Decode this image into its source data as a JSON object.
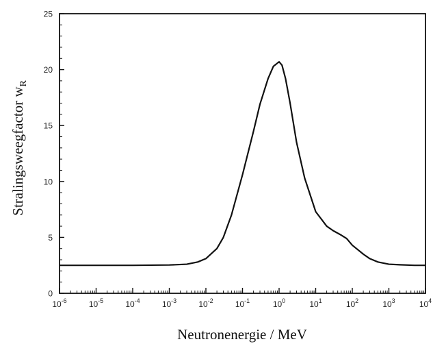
{
  "chart_data": {
    "type": "line",
    "xscale": "log",
    "xlim": [
      1e-06,
      10000
    ],
    "ylim": [
      0,
      25
    ],
    "xlabel": "Neutronenergie / MeV",
    "ylabel": {
      "main": "Stralingsweegfactor w",
      "sub": "R"
    },
    "xticks": [
      {
        "base": "10",
        "exp": "-6",
        "value": 1e-06
      },
      {
        "base": "10",
        "exp": "-5",
        "value": 1e-05
      },
      {
        "base": "10",
        "exp": "-4",
        "value": 0.0001
      },
      {
        "base": "10",
        "exp": "-3",
        "value": 0.001
      },
      {
        "base": "10",
        "exp": "-2",
        "value": 0.01
      },
      {
        "base": "10",
        "exp": "-1",
        "value": 0.1
      },
      {
        "base": "10",
        "exp": "0",
        "value": 1
      },
      {
        "base": "10",
        "exp": "1",
        "value": 10
      },
      {
        "base": "10",
        "exp": "2",
        "value": 100
      },
      {
        "base": "10",
        "exp": "3",
        "value": 1000
      },
      {
        "base": "10",
        "exp": "4",
        "value": 10000
      }
    ],
    "yticks": [
      {
        "label": "0",
        "value": 0
      },
      {
        "label": "5",
        "value": 5
      },
      {
        "label": "10",
        "value": 10
      },
      {
        "label": "15",
        "value": 15
      },
      {
        "label": "20",
        "value": 20
      },
      {
        "label": "25",
        "value": 25
      }
    ],
    "grid": false,
    "series": [
      {
        "x": [
          1e-06,
          1e-05,
          0.0001,
          0.001,
          0.003,
          0.006,
          0.01,
          0.02,
          0.03,
          0.05,
          0.1,
          0.2,
          0.3,
          0.5,
          0.7,
          1.0,
          1.2,
          1.5,
          2,
          3,
          5,
          10,
          20,
          30,
          50,
          70,
          100,
          200,
          300,
          500,
          1000,
          2000,
          5000,
          10000
        ],
        "y": [
          2.5,
          2.5,
          2.5,
          2.53,
          2.6,
          2.8,
          3.1,
          4.0,
          5.0,
          7.0,
          10.6,
          14.5,
          16.9,
          19.2,
          20.3,
          20.7,
          20.4,
          19.2,
          17.0,
          13.5,
          10.3,
          7.3,
          6.0,
          5.6,
          5.2,
          4.9,
          4.3,
          3.5,
          3.1,
          2.8,
          2.6,
          2.55,
          2.5,
          2.5
        ],
        "color": "#111111"
      }
    ]
  }
}
